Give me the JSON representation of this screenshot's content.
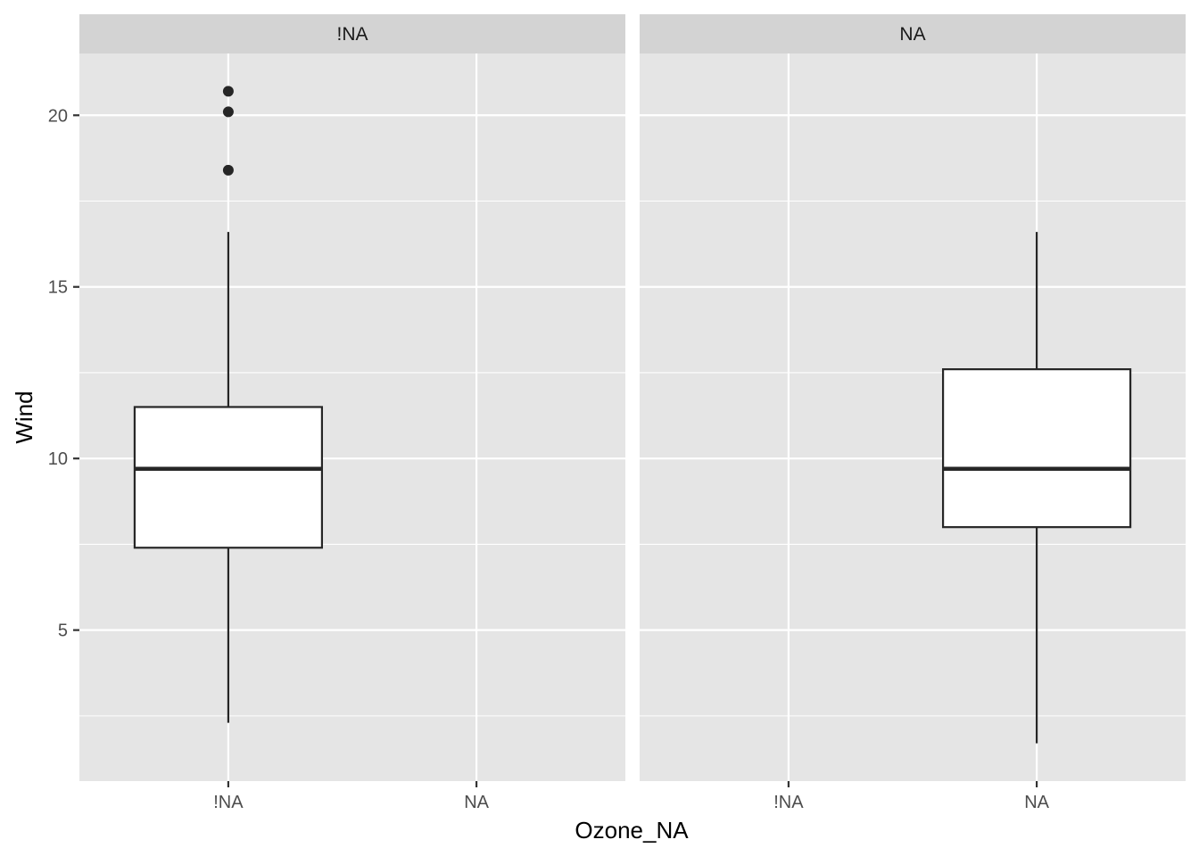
{
  "chart_data": {
    "type": "boxplot",
    "facet_variable": "Ozone_NA",
    "xlabel": "Ozone_NA",
    "ylabel": "Wind",
    "ylim": [
      0.6,
      21.8
    ],
    "y_ticks": [
      5,
      10,
      15,
      20
    ],
    "x_categories": [
      "!NA",
      "NA"
    ],
    "grid": true,
    "colors": {
      "panel_background": "#e5e5e5",
      "strip_background": "#d3d3d3",
      "grid": "#ffffff",
      "box_fill": "#ffffff",
      "box_line": "#262626"
    },
    "panels": [
      {
        "strip": "!NA",
        "boxes": [
          {
            "category": "!NA",
            "lower_whisker": 2.3,
            "q1": 7.4,
            "median": 9.7,
            "q3": 11.5,
            "upper_whisker": 16.6,
            "outliers": [
              18.4,
              20.1,
              20.7
            ]
          }
        ]
      },
      {
        "strip": "NA",
        "boxes": [
          {
            "category": "NA",
            "lower_whisker": 1.7,
            "q1": 8.0,
            "median": 9.7,
            "q3": 12.6,
            "upper_whisker": 16.6,
            "outliers": []
          }
        ]
      }
    ]
  }
}
